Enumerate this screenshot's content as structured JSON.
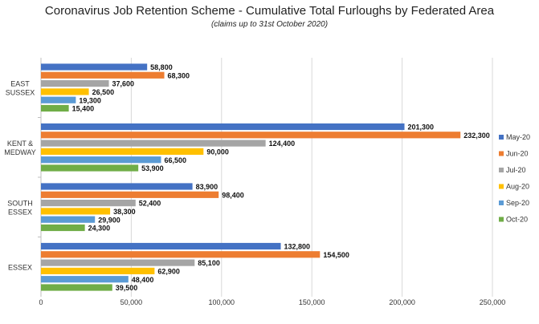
{
  "chart_data": {
    "type": "bar",
    "orientation": "horizontal",
    "title": "Coronavirus Job Retention Scheme - Cumulative Total Furloughs by Federated Area",
    "subtitle": "(claims up to 31st October 2020)",
    "xlabel": "",
    "ylabel": "",
    "xlim": [
      0,
      250000
    ],
    "x_ticks": [
      "0",
      "50,000",
      "100,000",
      "150,000",
      "200,000",
      "250,000"
    ],
    "grid": true,
    "legend_position": "right",
    "categories": [
      [
        "EAST",
        "SUSSEX"
      ],
      [
        "KENT &",
        "MEDWAY"
      ],
      [
        "SOUTH",
        "ESSEX"
      ],
      [
        "ESSEX"
      ]
    ],
    "series": [
      {
        "name": "May-20",
        "color": "#4472C4",
        "values": [
          58800,
          201300,
          83900,
          132800
        ],
        "labels": [
          "58,800",
          "201,300",
          "83,900",
          "132,800"
        ]
      },
      {
        "name": "Jun-20",
        "color": "#ED7D31",
        "values": [
          68300,
          232300,
          98400,
          154500
        ],
        "labels": [
          "68,300",
          "232,300",
          "98,400",
          "154,500"
        ]
      },
      {
        "name": "Jul-20",
        "color": "#A5A5A5",
        "values": [
          37600,
          124400,
          52400,
          85100
        ],
        "labels": [
          "37,600",
          "124,400",
          "52,400",
          "85,100"
        ]
      },
      {
        "name": "Aug-20",
        "color": "#FFC000",
        "values": [
          26500,
          90000,
          38300,
          62900
        ],
        "labels": [
          "26,500",
          "90,000",
          "38,300",
          "62,900"
        ]
      },
      {
        "name": "Sep-20",
        "color": "#5B9BD5",
        "values": [
          19300,
          66500,
          29900,
          48400
        ],
        "labels": [
          "19,300",
          "66,500",
          "29,900",
          "48,400"
        ]
      },
      {
        "name": "Oct-20",
        "color": "#70AD47",
        "values": [
          15400,
          53900,
          24300,
          39500
        ],
        "labels": [
          "15,400",
          "53,900",
          "24,300",
          "39,500"
        ]
      }
    ]
  }
}
